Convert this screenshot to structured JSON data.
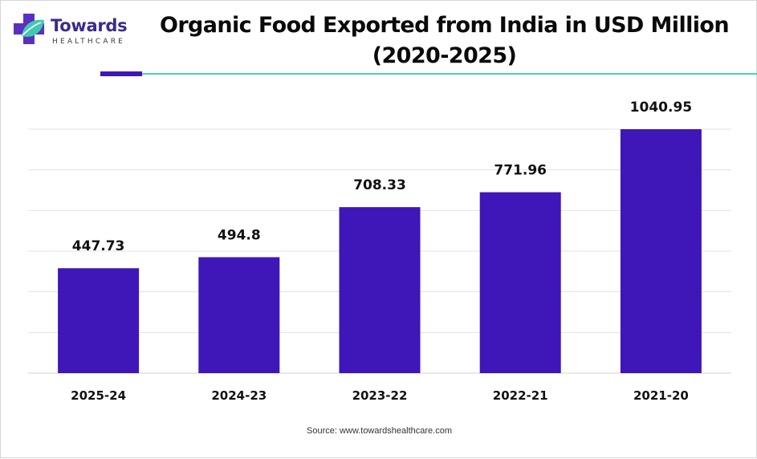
{
  "brand": {
    "name": "Towards",
    "subname": "HEALTHCARE",
    "primary_color": "#3f16b8",
    "accent_color": "#4ed0b2",
    "logo_icon": "medical-cross-leaf-icon"
  },
  "source_text": "Source: www.towardshealthcare.com",
  "chart_data": {
    "type": "bar",
    "title": "Organic Food Exported from India in USD Million (2020-2025)",
    "categories": [
      "2025-24",
      "2024-23",
      "2023-22",
      "2022-21",
      "2021-20"
    ],
    "series": [
      {
        "values": [
          447.73,
          494.8,
          708.33,
          771.96,
          1040.95
        ]
      }
    ],
    "value_labels": [
      "447.73",
      "494.8",
      "708.33",
      "771.96",
      "1040.95"
    ],
    "xlabel": "",
    "ylabel": "",
    "ylim": [
      0,
      1200
    ],
    "grid": true,
    "bar_color": "#3f16b8",
    "legend": "none"
  }
}
